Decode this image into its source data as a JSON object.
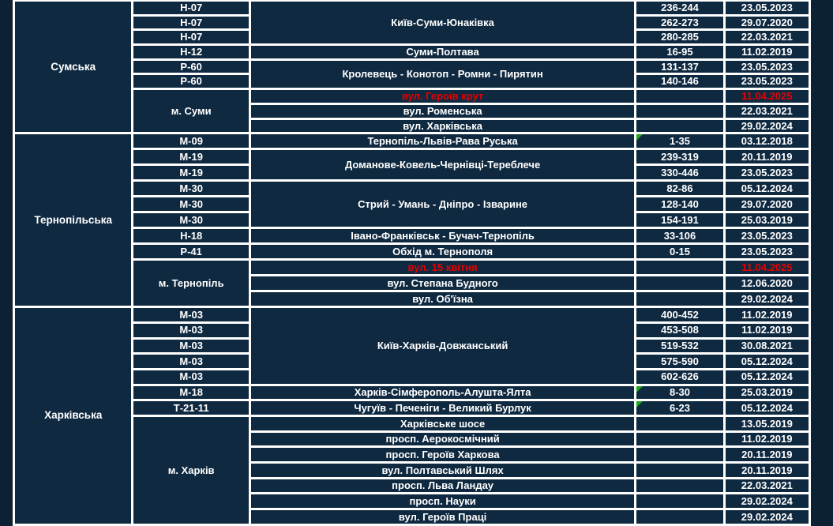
{
  "table": {
    "description_columns": [
      "region",
      "road_code",
      "road_name",
      "km_range",
      "survey_date"
    ],
    "colors": {
      "page_bg": "#0c2134",
      "cell_bg": "#0f2940",
      "grid": "#ffffff",
      "text": "#ffffff",
      "highlight_red": "#e60000",
      "marker_green": "#1fa51f"
    },
    "sections": [
      {
        "region": "Сумська",
        "rows": [
          {
            "code": {
              "text": "Н-07"
            },
            "name": {
              "text": "Київ-Суми-Юнаківка",
              "span": 3
            },
            "km": {
              "text": "236-244"
            },
            "date": {
              "text": "23.05.2023"
            }
          },
          {
            "code": {
              "text": "Н-07"
            },
            "km": {
              "text": "262-273"
            },
            "date": {
              "text": "29.07.2020"
            }
          },
          {
            "code": {
              "text": "Н-07"
            },
            "km": {
              "text": "280-285"
            },
            "date": {
              "text": "22.03.2021"
            }
          },
          {
            "code": {
              "text": "Н-12"
            },
            "name": {
              "text": "Суми-Полтава"
            },
            "km": {
              "text": "16-95"
            },
            "date": {
              "text": "11.02.2019"
            }
          },
          {
            "code": {
              "text": "Р-60"
            },
            "name": {
              "text": "Кролевець - Конотоп - Ромни - Пирятин",
              "span": 2
            },
            "km": {
              "text": "131-137"
            },
            "date": {
              "text": "23.05.2023"
            }
          },
          {
            "code": {
              "text": "Р-60"
            },
            "km": {
              "text": "140-146"
            },
            "date": {
              "text": "23.05.2023"
            }
          },
          {
            "code": {
              "text": "м. Суми",
              "span": 3
            },
            "name": {
              "text": "вул. Героїв крут",
              "red": true
            },
            "km": {
              "text": ""
            },
            "date": {
              "text": "11.04.2025",
              "red": true
            }
          },
          {
            "name": {
              "text": "вул. Роменська"
            },
            "km": {
              "text": ""
            },
            "date": {
              "text": "22.03.2021"
            }
          },
          {
            "name": {
              "text": "вул. Харківська"
            },
            "km": {
              "text": ""
            },
            "date": {
              "text": "29.02.2024"
            }
          }
        ]
      },
      {
        "region": "Тернопільська",
        "rows": [
          {
            "code": {
              "text": "М-09"
            },
            "name": {
              "text": "Тернопіль-Львів-Рава Руська"
            },
            "km": {
              "text": "1-35",
              "marker": true
            },
            "date": {
              "text": "03.12.2018"
            }
          },
          {
            "code": {
              "text": "М-19"
            },
            "name": {
              "text": "Доманове-Ковель-Чернівці-Тереблече",
              "span": 2
            },
            "km": {
              "text": "239-319"
            },
            "date": {
              "text": "20.11.2019"
            }
          },
          {
            "code": {
              "text": "М-19"
            },
            "km": {
              "text": "330-446"
            },
            "date": {
              "text": "23.05.2023"
            }
          },
          {
            "code": {
              "text": "М-30"
            },
            "name": {
              "text": "Стрий - Умань - Дніпро - Ізварине",
              "span": 3
            },
            "km": {
              "text": "82-86"
            },
            "date": {
              "text": "05.12.2024"
            }
          },
          {
            "code": {
              "text": "М-30"
            },
            "km": {
              "text": "128-140"
            },
            "date": {
              "text": "29.07.2020"
            }
          },
          {
            "code": {
              "text": "М-30"
            },
            "km": {
              "text": "154-191"
            },
            "date": {
              "text": "25.03.2019"
            }
          },
          {
            "code": {
              "text": "Н-18"
            },
            "name": {
              "text": "Івано-Франківськ - Бучач-Тернопіль"
            },
            "km": {
              "text": "33-106"
            },
            "date": {
              "text": "23.05.2023"
            }
          },
          {
            "code": {
              "text": "Р-41"
            },
            "name": {
              "text": "Обхід м. Тернополя"
            },
            "km": {
              "text": "0-15"
            },
            "date": {
              "text": "23.05.2023"
            }
          },
          {
            "code": {
              "text": "м. Тернопіль",
              "span": 3
            },
            "name": {
              "text": "вул. 15 квітня",
              "red": true
            },
            "km": {
              "text": ""
            },
            "date": {
              "text": "11.04.2025",
              "red": true
            }
          },
          {
            "name": {
              "text": "вул. Степана Будного"
            },
            "km": {
              "text": ""
            },
            "date": {
              "text": "12.06.2020"
            }
          },
          {
            "name": {
              "text": "вул. Об'їзна"
            },
            "km": {
              "text": ""
            },
            "date": {
              "text": "29.02.2024"
            }
          }
        ]
      },
      {
        "region": "Харківська",
        "rows": [
          {
            "code": {
              "text": "М-03"
            },
            "name": {
              "text": "Київ-Харків-Довжанський",
              "span": 5
            },
            "km": {
              "text": "400-452"
            },
            "date": {
              "text": "11.02.2019"
            }
          },
          {
            "code": {
              "text": "М-03"
            },
            "km": {
              "text": "453-508"
            },
            "date": {
              "text": "11.02.2019"
            }
          },
          {
            "code": {
              "text": "М-03"
            },
            "km": {
              "text": "519-532"
            },
            "date": {
              "text": "30.08.2021"
            }
          },
          {
            "code": {
              "text": "М-03"
            },
            "km": {
              "text": "575-590"
            },
            "date": {
              "text": "05.12.2024"
            }
          },
          {
            "code": {
              "text": "М-03"
            },
            "km": {
              "text": "602-626"
            },
            "date": {
              "text": "05.12.2024"
            }
          },
          {
            "code": {
              "text": "М-18"
            },
            "name": {
              "text": "Харків-Сімферополь-Алушта-Ялта"
            },
            "km": {
              "text": "8-30",
              "marker": true
            },
            "date": {
              "text": "25.03.2019"
            }
          },
          {
            "code": {
              "text": "Т-21-11"
            },
            "name": {
              "text": "Чугуїв - Печеніги - Великий Бурлук"
            },
            "km": {
              "text": "6-23",
              "marker": true
            },
            "date": {
              "text": "05.12.2024"
            }
          },
          {
            "code": {
              "text": "м. Харків",
              "span": 7
            },
            "name": {
              "text": "Харківське шосе"
            },
            "km": {
              "text": ""
            },
            "date": {
              "text": "13.05.2019"
            }
          },
          {
            "name": {
              "text": "просп. Аерокосмічний"
            },
            "km": {
              "text": ""
            },
            "date": {
              "text": "11.02.2019"
            }
          },
          {
            "name": {
              "text": "просп. Героїв Харкова"
            },
            "km": {
              "text": ""
            },
            "date": {
              "text": "20.11.2019"
            }
          },
          {
            "name": {
              "text": "вул. Полтавський Шлях"
            },
            "km": {
              "text": ""
            },
            "date": {
              "text": "20.11.2019"
            }
          },
          {
            "name": {
              "text": "просп. Льва Ландау"
            },
            "km": {
              "text": ""
            },
            "date": {
              "text": "22.03.2021"
            }
          },
          {
            "name": {
              "text": "просп. Науки"
            },
            "km": {
              "text": ""
            },
            "date": {
              "text": "29.02.2024"
            }
          },
          {
            "name": {
              "text": "вул. Героїв Праці"
            },
            "km": {
              "text": ""
            },
            "date": {
              "text": "29.02.2024"
            }
          }
        ]
      }
    ]
  }
}
